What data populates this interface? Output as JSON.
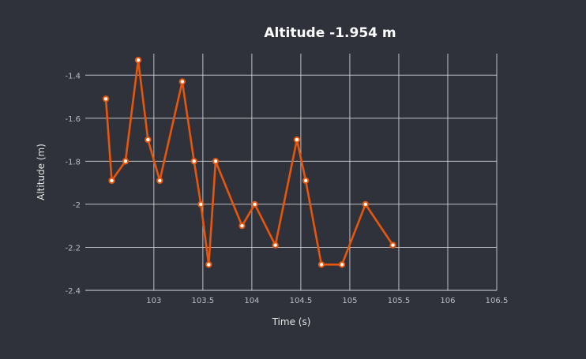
{
  "chart_data": {
    "type": "line",
    "title": "Altitude -1.954 m",
    "xlabel": "Time (s)",
    "ylabel": "Altitude (m)",
    "xlim": [
      102.3,
      106.5
    ],
    "ylim": [
      -2.4,
      -1.3
    ],
    "x_ticks": [
      {
        "value": 103,
        "label": "103"
      },
      {
        "value": 103.5,
        "label": "103.5"
      },
      {
        "value": 104,
        "label": "104"
      },
      {
        "value": 104.5,
        "label": "104.5"
      },
      {
        "value": 105,
        "label": "105"
      },
      {
        "value": 105.5,
        "label": "105.5"
      },
      {
        "value": 106,
        "label": "106"
      },
      {
        "value": 106.5,
        "label": "106.5"
      }
    ],
    "y_ticks": [
      {
        "value": -1.4,
        "label": "-1.4"
      },
      {
        "value": -1.6,
        "label": "-1.6"
      },
      {
        "value": -1.8,
        "label": "-1.8"
      },
      {
        "value": -2,
        "label": "-2"
      },
      {
        "value": -2.2,
        "label": "-2.2"
      },
      {
        "value": -2.4,
        "label": "-2.4"
      }
    ],
    "grid": true,
    "series": [
      {
        "name": "Altitude",
        "color": "#e8560b",
        "points": [
          [
            102.51,
            -1.51
          ],
          [
            102.57,
            -1.89
          ],
          [
            102.71,
            -1.8
          ],
          [
            102.84,
            -1.33
          ],
          [
            102.94,
            -1.7
          ],
          [
            103.06,
            -1.89
          ],
          [
            103.29,
            -1.43
          ],
          [
            103.41,
            -1.8
          ],
          [
            103.48,
            -2.0
          ],
          [
            103.56,
            -2.28
          ],
          [
            103.63,
            -1.8
          ],
          [
            103.9,
            -2.1
          ],
          [
            104.03,
            -2.0
          ],
          [
            104.24,
            -2.19
          ],
          [
            104.46,
            -1.7
          ],
          [
            104.55,
            -1.89
          ],
          [
            104.71,
            -2.28
          ],
          [
            104.92,
            -2.28
          ],
          [
            105.16,
            -2.0
          ],
          [
            105.44,
            -2.19
          ]
        ]
      }
    ]
  },
  "colors": {
    "background": "#2f323b",
    "grid": "#d7d8dc",
    "marker_fill": "#ffffff"
  }
}
